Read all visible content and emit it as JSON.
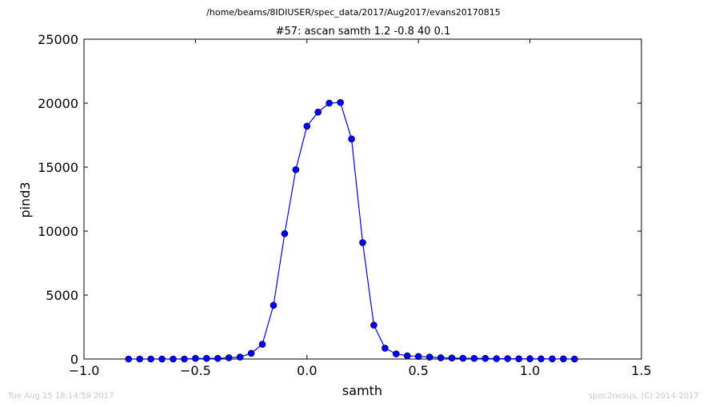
{
  "header": {
    "file_path": "/home/beams/8IDIUSER/spec_data/2017/Aug2017/evans20170815",
    "scan_title": "#57: ascan  samth 1.2 -0.8  40 0.1"
  },
  "footer": {
    "timestamp": "Tue Aug 15 18:14:59 2017",
    "credit": "spec2nexus, (C) 2014-2017"
  },
  "chart_data": {
    "type": "line",
    "title": "#57: ascan  samth 1.2 -0.8  40 0.1",
    "xlabel": "samth",
    "ylabel": "pind3",
    "xlim": [
      -1.0,
      1.5
    ],
    "ylim": [
      0,
      25000
    ],
    "xticks": [
      -1.0,
      -0.5,
      0.0,
      0.5,
      1.0,
      1.5
    ],
    "xtick_labels": [
      "−1.0",
      "−0.5",
      "0.0",
      "0.5",
      "1.0",
      "1.5"
    ],
    "yticks": [
      0,
      5000,
      10000,
      15000,
      20000,
      25000
    ],
    "ytick_labels": [
      "0",
      "5000",
      "10000",
      "15000",
      "20000",
      "25000"
    ],
    "grid": false,
    "line_color": "#0000ff",
    "marker": "circle",
    "series": [
      {
        "x": [
          -0.8,
          -0.75,
          -0.7,
          -0.65,
          -0.6,
          -0.55,
          -0.5,
          -0.45,
          -0.4,
          -0.35,
          -0.3,
          -0.25,
          -0.2,
          -0.15,
          -0.1,
          -0.05,
          0.0,
          0.05,
          0.1,
          0.15,
          0.2,
          0.25,
          0.3,
          0.35,
          0.4,
          0.45,
          0.5,
          0.55,
          0.6,
          0.65,
          0.7,
          0.75,
          0.8,
          0.85,
          0.9,
          0.95,
          1.0,
          1.05,
          1.1,
          1.15,
          1.2
        ],
        "y": [
          0,
          0,
          0,
          0,
          0,
          0,
          50,
          50,
          50,
          100,
          150,
          450,
          1150,
          4200,
          9800,
          14800,
          18200,
          19300,
          20000,
          20050,
          17200,
          9100,
          2650,
          850,
          400,
          250,
          200,
          150,
          100,
          80,
          60,
          50,
          50,
          30,
          30,
          20,
          20,
          15,
          10,
          10,
          0
        ]
      }
    ]
  }
}
